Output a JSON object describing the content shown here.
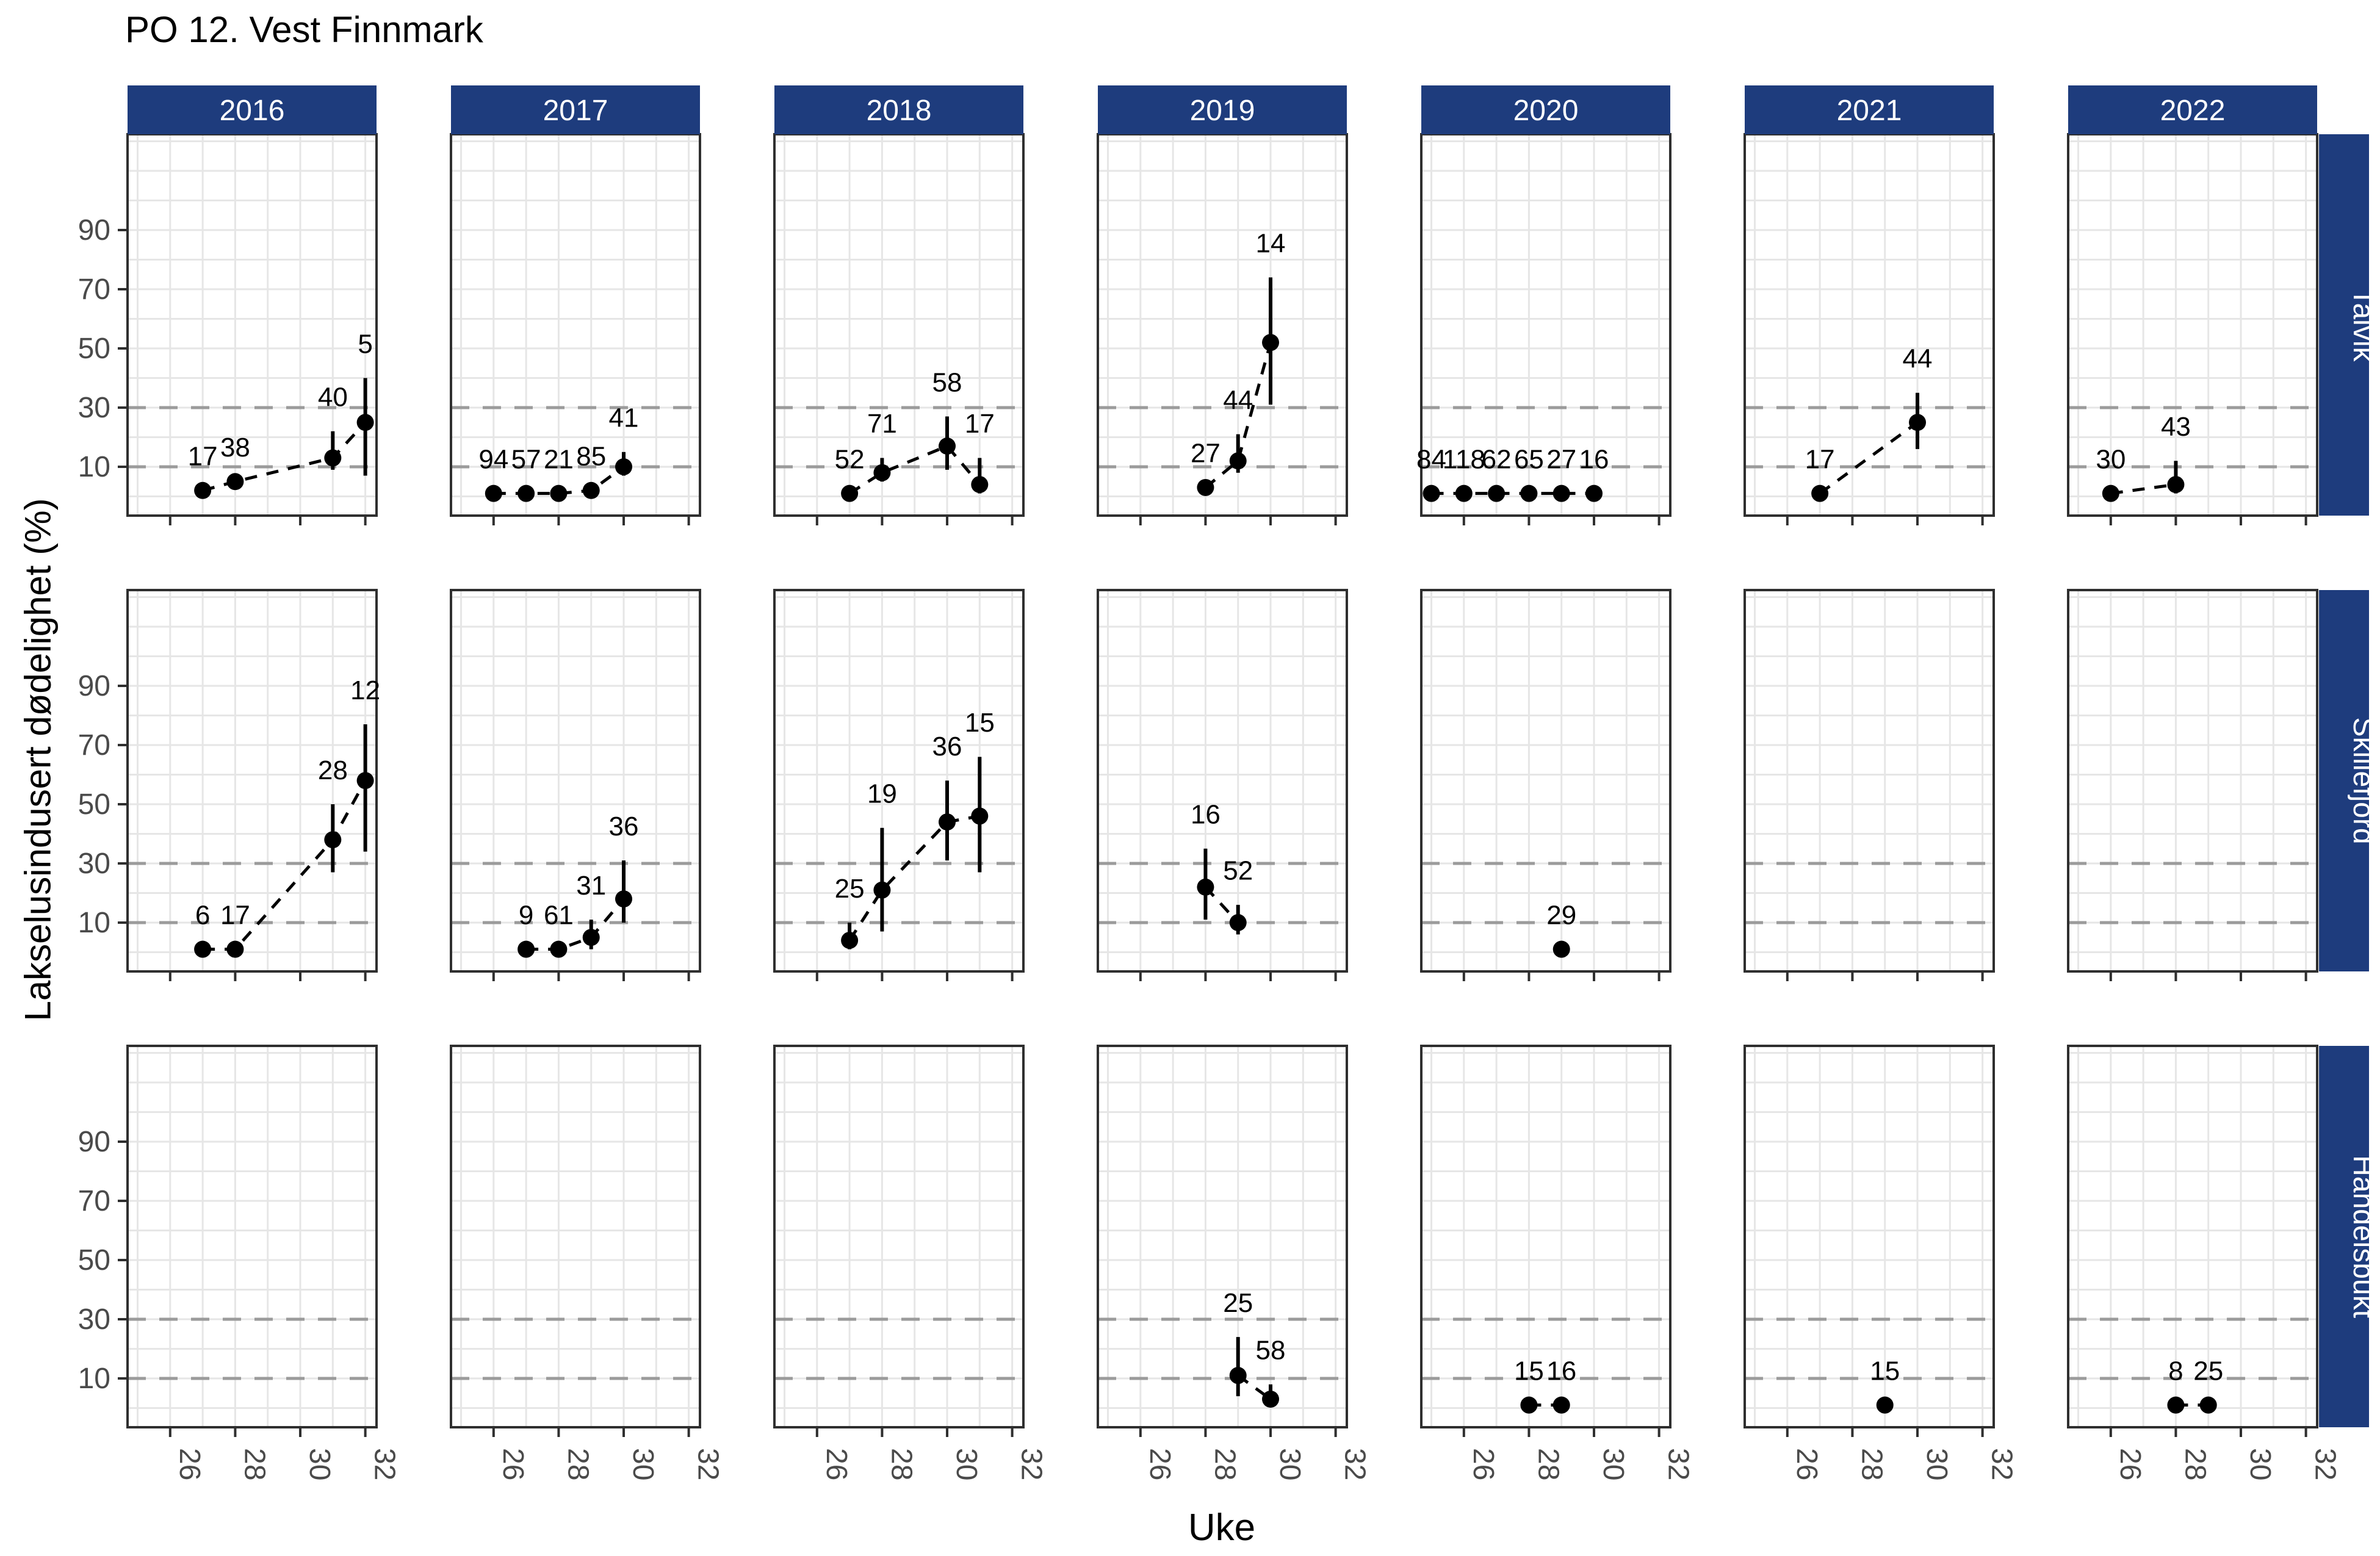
{
  "chart_data": {
    "type": "scatter",
    "title": "PO 12. Vest Finnmark",
    "xlabel": "Uke",
    "ylabel": "Lakselusindusert dødelighet (%)",
    "col_facets": [
      "2016",
      "2017",
      "2018",
      "2019",
      "2020",
      "2021",
      "2022"
    ],
    "row_facets": [
      "Talvik",
      "Skillefjord",
      "Handelsbukt"
    ],
    "x_ticks": [
      26,
      28,
      30,
      32
    ],
    "y_ticks": [
      10,
      30,
      50,
      70,
      90
    ],
    "threshold_lines": [
      10,
      30
    ],
    "x_range": [
      24.7,
      33.4
    ],
    "y_range": [
      -6.5,
      122.4
    ],
    "grid": true,
    "legend": "none",
    "colors": {
      "strip_fill": "#1E3C7D",
      "strip_text": "#ffffff",
      "panel_border": "#2f2f2f",
      "grid_line": "#e6e6e6",
      "threshold_line": "#9b9b9b",
      "axis_text": "#4a4a4a",
      "point": "#000000"
    },
    "series": [
      {
        "row": "Talvik",
        "col": "2016",
        "points": [
          {
            "week": 27,
            "value": 2,
            "lo": null,
            "hi": null,
            "n": 17
          },
          {
            "week": 28,
            "value": 5,
            "lo": null,
            "hi": null,
            "n": 38
          },
          {
            "week": 31,
            "value": 13,
            "lo": 9,
            "hi": 22,
            "n": 40
          },
          {
            "week": 32,
            "value": 25,
            "lo": 7,
            "hi": 40,
            "n": 5
          }
        ]
      },
      {
        "row": "Talvik",
        "col": "2017",
        "points": [
          {
            "week": 26,
            "value": 1,
            "lo": null,
            "hi": null,
            "n": 94
          },
          {
            "week": 27,
            "value": 1,
            "lo": null,
            "hi": null,
            "n": 57
          },
          {
            "week": 28,
            "value": 1,
            "lo": null,
            "hi": null,
            "n": 21
          },
          {
            "week": 29,
            "value": 2,
            "lo": null,
            "hi": null,
            "n": 85
          },
          {
            "week": 30,
            "value": 10,
            "lo": 7,
            "hi": 15,
            "n": 41
          }
        ]
      },
      {
        "row": "Talvik",
        "col": "2018",
        "points": [
          {
            "week": 27,
            "value": 1,
            "lo": null,
            "hi": null,
            "n": 52
          },
          {
            "week": 28,
            "value": 8,
            "lo": 5,
            "hi": 13,
            "n": 71
          },
          {
            "week": 30,
            "value": 17,
            "lo": 9,
            "hi": 27,
            "n": 58
          },
          {
            "week": 31,
            "value": 4,
            "lo": 1,
            "hi": 13,
            "n": 17
          }
        ]
      },
      {
        "row": "Talvik",
        "col": "2019",
        "points": [
          {
            "week": 28,
            "value": 3,
            "lo": null,
            "hi": null,
            "n": 27
          },
          {
            "week": 29,
            "value": 12,
            "lo": 8,
            "hi": 21,
            "n": 44
          },
          {
            "week": 30,
            "value": 52,
            "lo": 31,
            "hi": 74,
            "n": 14
          }
        ]
      },
      {
        "row": "Talvik",
        "col": "2020",
        "points": [
          {
            "week": 25,
            "value": 1,
            "lo": null,
            "hi": null,
            "n": 84
          },
          {
            "week": 26,
            "value": 1,
            "lo": null,
            "hi": null,
            "n": 118
          },
          {
            "week": 27,
            "value": 1,
            "lo": null,
            "hi": null,
            "n": 62
          },
          {
            "week": 28,
            "value": 1,
            "lo": null,
            "hi": null,
            "n": 65
          },
          {
            "week": 29,
            "value": 1,
            "lo": null,
            "hi": null,
            "n": 27
          },
          {
            "week": 30,
            "value": 1,
            "lo": null,
            "hi": null,
            "n": 16
          }
        ]
      },
      {
        "row": "Talvik",
        "col": "2021",
        "points": [
          {
            "week": 27,
            "value": 1,
            "lo": null,
            "hi": null,
            "n": 17
          },
          {
            "week": 30,
            "value": 25,
            "lo": 16,
            "hi": 35,
            "n": 44
          }
        ]
      },
      {
        "row": "Talvik",
        "col": "2022",
        "points": [
          {
            "week": 26,
            "value": 1,
            "lo": null,
            "hi": null,
            "n": 30
          },
          {
            "week": 28,
            "value": 4,
            "lo": 1,
            "hi": 12,
            "n": 43
          }
        ]
      },
      {
        "row": "Skillefjord",
        "col": "2016",
        "points": [
          {
            "week": 27,
            "value": 1,
            "lo": null,
            "hi": null,
            "n": 6
          },
          {
            "week": 28,
            "value": 1,
            "lo": null,
            "hi": null,
            "n": 17
          },
          {
            "week": 31,
            "value": 38,
            "lo": 27,
            "hi": 50,
            "n": 28
          },
          {
            "week": 32,
            "value": 58,
            "lo": 34,
            "hi": 77,
            "n": 12
          }
        ]
      },
      {
        "row": "Skillefjord",
        "col": "2017",
        "points": [
          {
            "week": 27,
            "value": 1,
            "lo": null,
            "hi": null,
            "n": 9
          },
          {
            "week": 28,
            "value": 1,
            "lo": null,
            "hi": null,
            "n": 61
          },
          {
            "week": 29,
            "value": 5,
            "lo": 1,
            "hi": 11,
            "n": 31
          },
          {
            "week": 30,
            "value": 18,
            "lo": 10,
            "hi": 31,
            "n": 36
          }
        ]
      },
      {
        "row": "Skillefjord",
        "col": "2018",
        "points": [
          {
            "week": 27,
            "value": 4,
            "lo": 1,
            "hi": 10,
            "n": 25
          },
          {
            "week": 28,
            "value": 21,
            "lo": 7,
            "hi": 42,
            "n": 19
          },
          {
            "week": 30,
            "value": 44,
            "lo": 31,
            "hi": 58,
            "n": 36
          },
          {
            "week": 31,
            "value": 46,
            "lo": 27,
            "hi": 66,
            "n": 15
          }
        ]
      },
      {
        "row": "Skillefjord",
        "col": "2019",
        "points": [
          {
            "week": 28,
            "value": 22,
            "lo": 11,
            "hi": 35,
            "n": 16
          },
          {
            "week": 29,
            "value": 10,
            "lo": 6,
            "hi": 16,
            "n": 52
          }
        ]
      },
      {
        "row": "Skillefjord",
        "col": "2020",
        "points": [
          {
            "week": 29,
            "value": 1,
            "lo": null,
            "hi": null,
            "n": 29
          }
        ]
      },
      {
        "row": "Skillefjord",
        "col": "2021",
        "points": []
      },
      {
        "row": "Skillefjord",
        "col": "2022",
        "points": []
      },
      {
        "row": "Handelsbukt",
        "col": "2016",
        "points": []
      },
      {
        "row": "Handelsbukt",
        "col": "2017",
        "points": []
      },
      {
        "row": "Handelsbukt",
        "col": "2018",
        "points": []
      },
      {
        "row": "Handelsbukt",
        "col": "2019",
        "points": [
          {
            "week": 29,
            "value": 11,
            "lo": 4,
            "hi": 24,
            "n": 25
          },
          {
            "week": 30,
            "value": 3,
            "lo": 1,
            "hi": 8,
            "n": 58
          }
        ]
      },
      {
        "row": "Handelsbukt",
        "col": "2020",
        "points": [
          {
            "week": 28,
            "value": 1,
            "lo": null,
            "hi": null,
            "n": 15
          },
          {
            "week": 29,
            "value": 1,
            "lo": null,
            "hi": null,
            "n": 16
          }
        ]
      },
      {
        "row": "Handelsbukt",
        "col": "2021",
        "points": [
          {
            "week": 29,
            "value": 1,
            "lo": null,
            "hi": null,
            "n": 15
          }
        ]
      },
      {
        "row": "Handelsbukt",
        "col": "2022",
        "points": [
          {
            "week": 28,
            "value": 1,
            "lo": null,
            "hi": null,
            "n": 8
          },
          {
            "week": 29,
            "value": 1,
            "lo": null,
            "hi": null,
            "n": 25
          }
        ]
      }
    ]
  }
}
